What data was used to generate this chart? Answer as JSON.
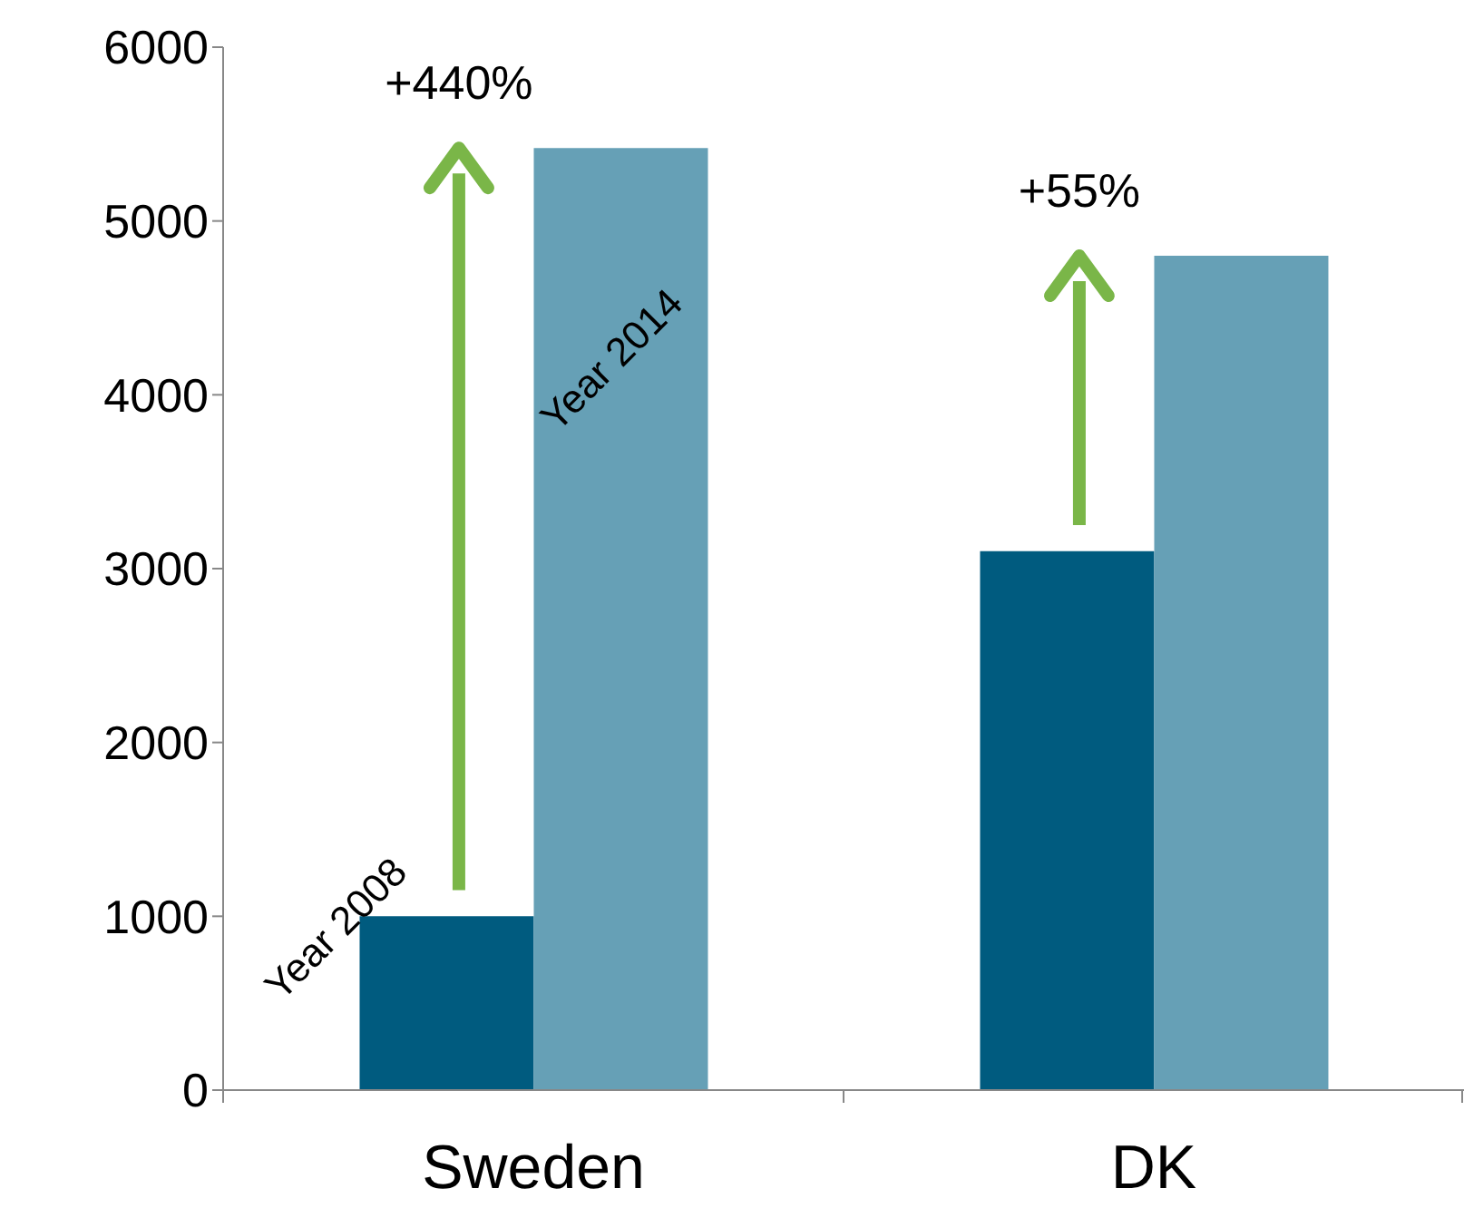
{
  "chart_data": {
    "type": "bar",
    "categories": [
      "Sweden",
      "DK"
    ],
    "series": [
      {
        "name": "Year 2008",
        "color": "#005b7f",
        "values": [
          1000,
          3100
        ]
      },
      {
        "name": "Year 2014",
        "color": "#66a0b6",
        "values": [
          5420,
          4800
        ]
      }
    ],
    "ylim": [
      0,
      6000
    ],
    "yticks": [
      0,
      1000,
      2000,
      3000,
      4000,
      5000,
      6000
    ],
    "annotations": [
      "+440%",
      "+55%"
    ]
  }
}
